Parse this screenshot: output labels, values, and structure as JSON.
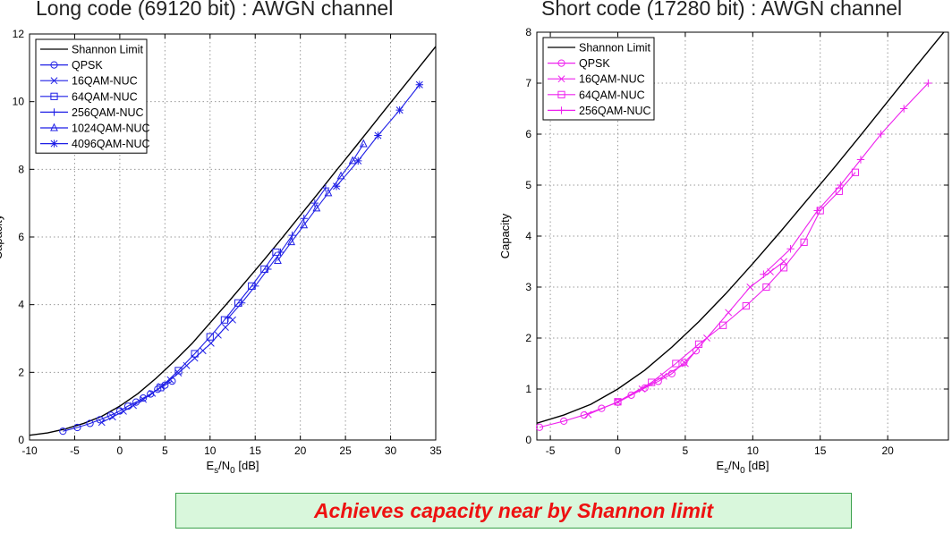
{
  "banner_text": "Achieves capacity near by Shannon limit",
  "chart_data": [
    {
      "type": "line",
      "title": "Long code (69120 bit) : AWGN channel",
      "xlabel_main": "E",
      "xlabel_sub1": "s",
      "xlabel_mid": "/N",
      "xlabel_sub2": "0",
      "xlabel_unit": " [dB]",
      "ylabel": "Capacity",
      "xlim": [
        -10,
        35
      ],
      "ylim": [
        0,
        12
      ],
      "xticks": [
        -10,
        -5,
        0,
        5,
        10,
        15,
        20,
        25,
        30,
        35
      ],
      "yticks": [
        0,
        2,
        4,
        6,
        8,
        10,
        12
      ],
      "grid": true,
      "legend_position": "top-left",
      "color": "#1f1fe6",
      "shannon": {
        "name": "Shannon Limit",
        "color": "#000000",
        "x": [
          -10,
          -8,
          -6,
          -4,
          -2,
          0,
          2,
          4,
          6,
          8,
          10,
          12,
          14,
          16,
          18,
          20,
          22,
          24,
          26,
          28,
          30,
          32,
          35
        ],
        "y": [
          0.14,
          0.21,
          0.33,
          0.49,
          0.7,
          1.0,
          1.37,
          1.82,
          2.32,
          2.85,
          3.46,
          4.07,
          4.7,
          5.33,
          5.98,
          6.64,
          7.3,
          7.97,
          8.63,
          9.3,
          9.97,
          10.63,
          11.63
        ]
      },
      "series": [
        {
          "name": "QPSK",
          "marker": "circle",
          "x": [
            -6.3,
            -4.7,
            -3.3,
            -2.2,
            -1.0,
            0.0,
            0.9,
            1.8,
            2.6,
            3.4,
            4.2,
            5.0,
            5.8
          ],
          "y": [
            0.26,
            0.37,
            0.49,
            0.6,
            0.73,
            0.86,
            1.0,
            1.12,
            1.24,
            1.36,
            1.5,
            1.62,
            1.74
          ]
        },
        {
          "name": "16QAM-NUC",
          "marker": "x",
          "x": [
            -2.0,
            -0.8,
            0.4,
            1.5,
            2.6,
            3.6,
            4.6,
            5.6,
            6.5,
            7.4,
            8.3,
            9.2,
            10.1,
            10.9,
            11.7,
            12.5
          ],
          "y": [
            0.52,
            0.68,
            0.85,
            1.02,
            1.2,
            1.38,
            1.58,
            1.78,
            1.98,
            2.2,
            2.42,
            2.64,
            2.86,
            3.1,
            3.33,
            3.55
          ]
        },
        {
          "name": "64QAM-NUC",
          "marker": "square",
          "x": [
            4.5,
            6.5,
            8.3,
            10.0,
            11.6,
            13.1,
            14.6,
            16.0,
            17.3
          ],
          "y": [
            1.55,
            2.05,
            2.55,
            3.05,
            3.55,
            4.05,
            4.55,
            5.05,
            5.55
          ]
        },
        {
          "name": "256QAM-NUC",
          "marker": "plus",
          "x": [
            12.0,
            13.5,
            15.0,
            16.4,
            17.8,
            19.1,
            20.4,
            21.6,
            22.8
          ],
          "y": [
            3.6,
            4.05,
            4.55,
            5.05,
            5.55,
            6.05,
            6.55,
            7.0,
            7.45
          ]
        },
        {
          "name": "1024QAM-NUC",
          "marker": "triangle",
          "x": [
            17.5,
            19.0,
            20.4,
            21.8,
            23.1,
            24.5,
            25.8,
            27.0
          ],
          "y": [
            5.3,
            5.85,
            6.35,
            6.85,
            7.3,
            7.8,
            8.25,
            8.75
          ]
        },
        {
          "name": "4096QAM-NUC",
          "marker": "asterisk",
          "x": [
            24.0,
            26.4,
            28.6,
            31.0,
            33.2
          ],
          "y": [
            7.5,
            8.25,
            9.0,
            9.75,
            10.5
          ]
        }
      ]
    },
    {
      "type": "line",
      "title": "Short code (17280 bit) : AWGN channel",
      "xlabel_main": "E",
      "xlabel_sub1": "s",
      "xlabel_mid": "/N",
      "xlabel_sub2": "0",
      "xlabel_unit": " [dB]",
      "ylabel": "Capacity",
      "xlim": [
        -6,
        24.5
      ],
      "ylim": [
        0,
        8
      ],
      "xticks": [
        -5,
        0,
        5,
        10,
        15,
        20
      ],
      "yticks": [
        0,
        1,
        2,
        3,
        4,
        5,
        6,
        7,
        8
      ],
      "grid": true,
      "legend_position": "top-left",
      "color": "#ee22ee",
      "shannon": {
        "name": "Shannon Limit",
        "color": "#000000",
        "x": [
          -6,
          -4,
          -2,
          0,
          2,
          4,
          6,
          8,
          10,
          12,
          14,
          16,
          18,
          20,
          22,
          24.5
        ],
        "y": [
          0.33,
          0.49,
          0.7,
          1.0,
          1.37,
          1.82,
          2.32,
          2.87,
          3.46,
          4.07,
          4.7,
          5.33,
          5.98,
          6.64,
          7.3,
          8.11
        ]
      },
      "series": [
        {
          "name": "QPSK",
          "marker": "circle",
          "x": [
            -5.8,
            -4.0,
            -2.5,
            -1.2,
            0.0,
            1.0,
            2.0,
            3.0,
            4.0,
            4.9,
            5.8
          ],
          "y": [
            0.25,
            0.37,
            0.49,
            0.62,
            0.74,
            0.88,
            1.02,
            1.15,
            1.3,
            1.52,
            1.75
          ]
        },
        {
          "name": "16QAM-NUC",
          "marker": "x",
          "x": [
            -2.2,
            0.0,
            1.8,
            3.4,
            5.0,
            6.6,
            8.2,
            9.8,
            11.3,
            12.3
          ],
          "y": [
            0.5,
            0.75,
            1.0,
            1.25,
            1.5,
            2.0,
            2.5,
            3.0,
            3.3,
            3.5
          ]
        },
        {
          "name": "64QAM-NUC",
          "marker": "square",
          "x": [
            0.0,
            2.5,
            4.3,
            6.0,
            7.8,
            9.5,
            11.0,
            12.3,
            13.8,
            15.0,
            16.4,
            17.6
          ],
          "y": [
            0.75,
            1.13,
            1.5,
            1.88,
            2.25,
            2.63,
            3.0,
            3.38,
            3.88,
            4.5,
            4.88,
            5.25
          ]
        },
        {
          "name": "256QAM-NUC",
          "marker": "plus",
          "x": [
            10.8,
            12.8,
            14.8,
            16.5,
            18.0,
            19.5,
            21.2,
            23.0
          ],
          "y": [
            3.25,
            3.75,
            4.5,
            5.0,
            5.5,
            6.0,
            6.5,
            7.0
          ]
        }
      ]
    }
  ]
}
